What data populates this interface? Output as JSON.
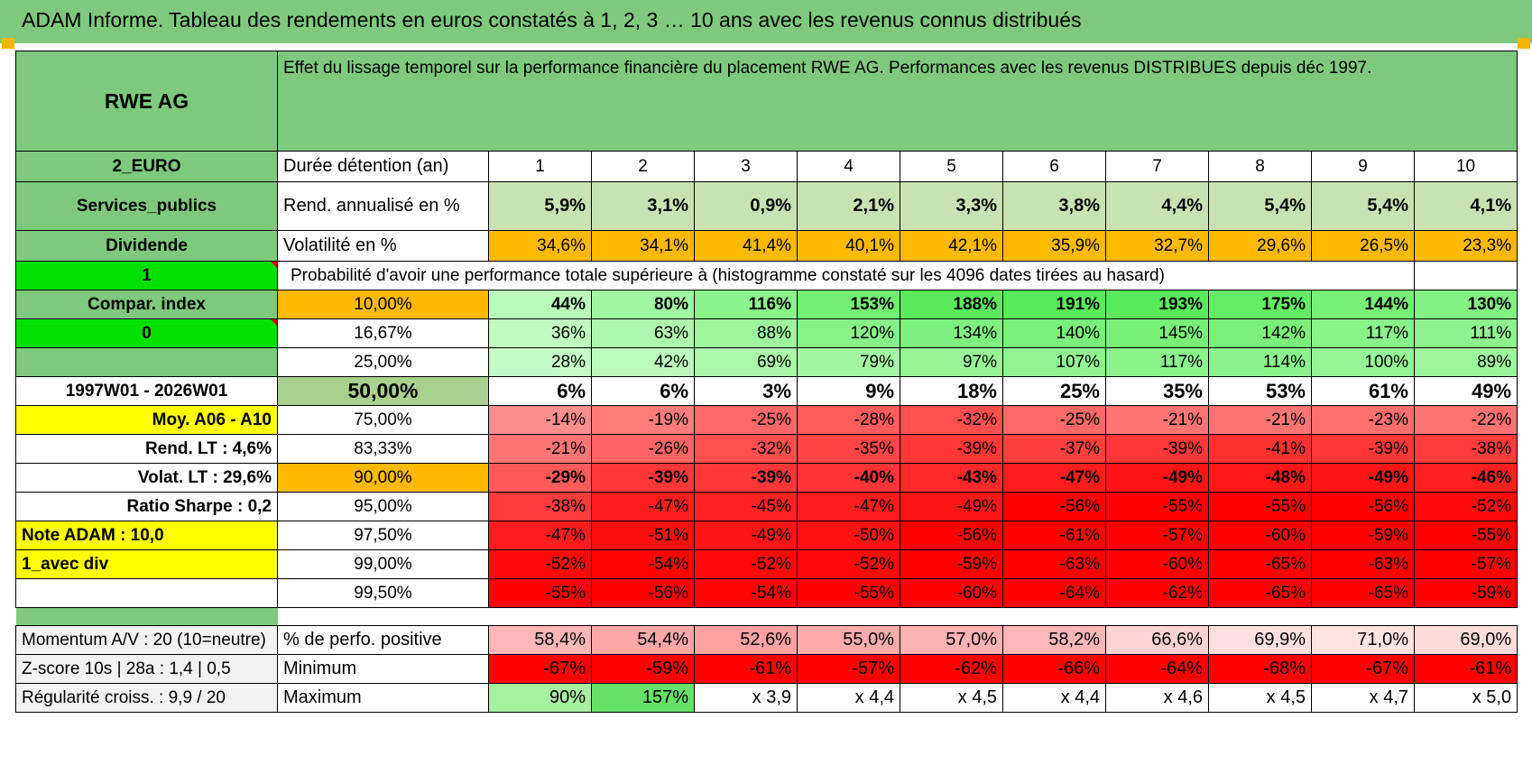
{
  "header": {
    "title": "ADAM Informe. Tableau des rendements en euros constatés à 1, 2, 3 … 10 ans avec les revenus connus distribués"
  },
  "colors": {
    "header_green": "#7ec97e",
    "bright_green": "#00e000",
    "orange": "#ffb900",
    "yellow": "#ffff00",
    "red_text": "#e00000"
  },
  "left": {
    "name": "RWE AG",
    "currency": "2_EURO",
    "sector": "Services_publics",
    "type": "Dividende",
    "flag1": "1",
    "compar": "Compar. index",
    "flag0": "0",
    "blank": "",
    "period": "1997W01 - 2026W01",
    "moy": "Moy. A06 - A10",
    "rend_lt": "Rend. LT :    4,6%",
    "volat_lt": "Volat. LT :    29,6%",
    "sharpe": "Ratio Sharpe :     0,2",
    "note": "Note ADAM : 10,0",
    "avec_div": "1_avec div",
    "momentum": "Momentum A/V : 20 (10=neutre)",
    "zscore": "Z-score 10s | 28a : 1,4 | 0,5",
    "regularite": "Régularité croiss. : 9,9 / 20"
  },
  "desc": "Effet du lissage temporel sur la performance financière du placement RWE AG. Performances avec les revenus DISTRIBUES depuis déc 1997.",
  "durations": {
    "label": "Durée détention (an)",
    "values": [
      "1",
      "2",
      "3",
      "4",
      "5",
      "6",
      "7",
      "8",
      "9",
      "10"
    ]
  },
  "rend": {
    "label": "Rend. annualisé en %",
    "values": [
      "5,9%",
      "3,1%",
      "0,9%",
      "2,1%",
      "3,3%",
      "3,8%",
      "4,4%",
      "5,4%",
      "5,4%",
      "4,1%"
    ]
  },
  "vol": {
    "label": "Volatilité en %",
    "values": [
      "34,6%",
      "34,1%",
      "41,4%",
      "40,1%",
      "42,1%",
      "35,9%",
      "32,7%",
      "29,6%",
      "26,5%",
      "23,3%"
    ]
  },
  "prob_header": "Probabilité d'avoir une performance totale supérieure à (histogramme constaté sur les 4096 dates tirées au hasard)",
  "prob": [
    {
      "p": "10,00%",
      "values": [
        "44%",
        "80%",
        "116%",
        "153%",
        "188%",
        "191%",
        "193%",
        "175%",
        "144%",
        "130%"
      ]
    },
    {
      "p": "16,67%",
      "values": [
        "36%",
        "63%",
        "88%",
        "120%",
        "134%",
        "140%",
        "145%",
        "142%",
        "117%",
        "111%"
      ]
    },
    {
      "p": "25,00%",
      "values": [
        "28%",
        "42%",
        "69%",
        "79%",
        "97%",
        "107%",
        "117%",
        "114%",
        "100%",
        "89%"
      ]
    },
    {
      "p": "50,00%",
      "values": [
        "6%",
        "6%",
        "3%",
        "9%",
        "18%",
        "25%",
        "35%",
        "53%",
        "61%",
        "49%"
      ]
    },
    {
      "p": "75,00%",
      "values": [
        "-14%",
        "-19%",
        "-25%",
        "-28%",
        "-32%",
        "-25%",
        "-21%",
        "-21%",
        "-23%",
        "-22%"
      ]
    },
    {
      "p": "83,33%",
      "values": [
        "-21%",
        "-26%",
        "-32%",
        "-35%",
        "-39%",
        "-37%",
        "-39%",
        "-41%",
        "-39%",
        "-38%"
      ]
    },
    {
      "p": "90,00%",
      "values": [
        "-29%",
        "-39%",
        "-39%",
        "-40%",
        "-43%",
        "-47%",
        "-49%",
        "-48%",
        "-49%",
        "-46%"
      ]
    },
    {
      "p": "95,00%",
      "values": [
        "-38%",
        "-47%",
        "-45%",
        "-47%",
        "-49%",
        "-56%",
        "-55%",
        "-55%",
        "-56%",
        "-52%"
      ]
    },
    {
      "p": "97,50%",
      "values": [
        "-47%",
        "-51%",
        "-49%",
        "-50%",
        "-56%",
        "-61%",
        "-57%",
        "-60%",
        "-59%",
        "-55%"
      ]
    },
    {
      "p": "99,00%",
      "values": [
        "-52%",
        "-54%",
        "-52%",
        "-52%",
        "-59%",
        "-63%",
        "-60%",
        "-65%",
        "-63%",
        "-57%"
      ]
    },
    {
      "p": "99,50%",
      "values": [
        "-55%",
        "-56%",
        "-54%",
        "-55%",
        "-60%",
        "-64%",
        "-62%",
        "-65%",
        "-65%",
        "-59%"
      ]
    }
  ],
  "stats": [
    {
      "label": "% de perfo. positive",
      "values": [
        "58,4%",
        "54,4%",
        "52,6%",
        "55,0%",
        "57,0%",
        "58,2%",
        "66,6%",
        "69,9%",
        "71,0%",
        "69,0%"
      ]
    },
    {
      "label": "Minimum",
      "values": [
        "-67%",
        "-59%",
        "-61%",
        "-57%",
        "-62%",
        "-66%",
        "-64%",
        "-68%",
        "-67%",
        "-61%"
      ]
    },
    {
      "label": "Maximum",
      "values": [
        "90%",
        "157%",
        "x 3,9",
        "x 4,4",
        "x 4,5",
        "x 4,4",
        "x 4,6",
        "x 4,5",
        "x 4,7",
        "x 5,0"
      ]
    }
  ]
}
